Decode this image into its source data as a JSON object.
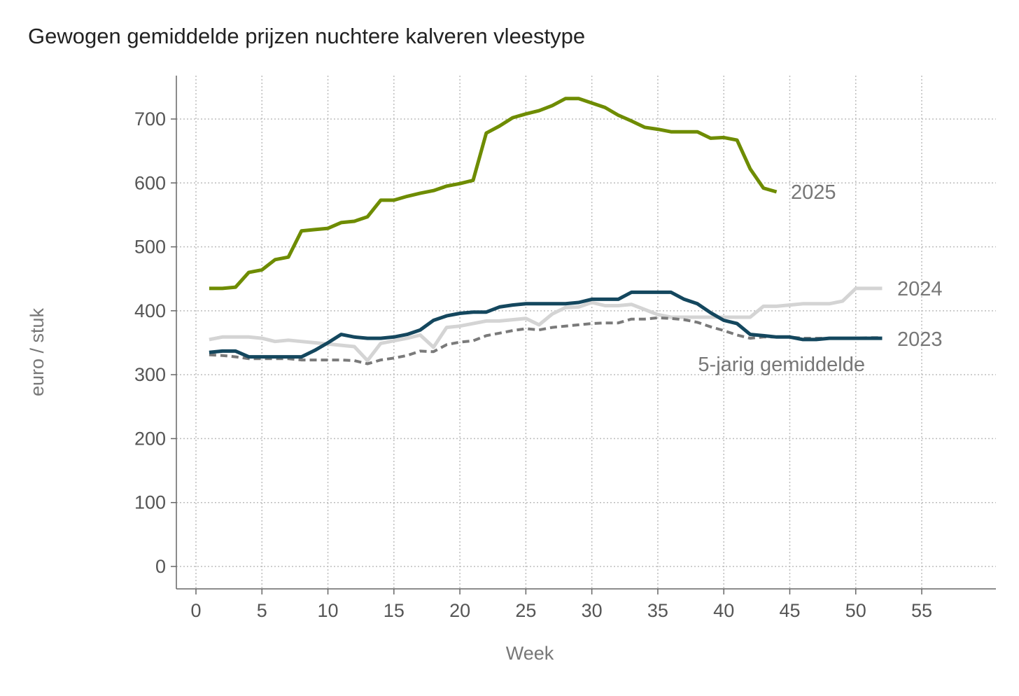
{
  "chart_data": {
    "type": "line",
    "title": "Gewogen gemiddelde prijzen nuchtere kalveren vleestype",
    "xlabel": "Week",
    "ylabel": "euro / stuk",
    "xlim": [
      0,
      59
    ],
    "ylim": [
      -35,
      770
    ],
    "xticks": [
      0,
      5,
      10,
      15,
      20,
      25,
      30,
      35,
      40,
      45,
      50,
      55
    ],
    "yticks": [
      0,
      100,
      200,
      300,
      400,
      500,
      600,
      700
    ],
    "grid": true,
    "legend": "inline labels at line ends",
    "series": [
      {
        "name": "2025",
        "color": "#6e8c00",
        "dashed": false,
        "x_start": 1,
        "values": [
          435,
          435,
          437,
          460,
          464,
          480,
          484,
          525,
          527,
          529,
          538,
          540,
          547,
          573,
          573,
          579,
          584,
          588,
          595,
          599,
          604,
          678,
          689,
          702,
          708,
          713,
          721,
          732,
          732,
          725,
          718,
          706,
          697,
          687,
          684,
          680,
          680,
          680,
          670,
          671,
          667,
          622,
          592,
          586
        ]
      },
      {
        "name": "2024",
        "color": "#d4d4d4",
        "dashed": false,
        "x_start": 1,
        "values": [
          355,
          359,
          359,
          359,
          357,
          352,
          354,
          352,
          350,
          348,
          346,
          344,
          322,
          349,
          353,
          357,
          362,
          343,
          374,
          376,
          380,
          384,
          384,
          386,
          388,
          378,
          395,
          405,
          406,
          413,
          408,
          408,
          410,
          402,
          394,
          390,
          390,
          390,
          390,
          390,
          390,
          390,
          407,
          407,
          409,
          411,
          411,
          411,
          415,
          435,
          435,
          435
        ]
      },
      {
        "name": "2023",
        "color": "#14475e",
        "dashed": false,
        "x_start": 1,
        "values": [
          335,
          337,
          337,
          328,
          328,
          328,
          328,
          328,
          338,
          350,
          363,
          359,
          357,
          357,
          359,
          363,
          370,
          385,
          392,
          396,
          398,
          398,
          406,
          409,
          411,
          411,
          411,
          411,
          413,
          418,
          418,
          418,
          429,
          429,
          429,
          429,
          418,
          411,
          397,
          385,
          380,
          363,
          361,
          359,
          359,
          355,
          355,
          357,
          357,
          357,
          357,
          357
        ]
      },
      {
        "name": "5-jarig gemiddelde",
        "color": "#7a7a7a",
        "dashed": true,
        "x_start": 1,
        "values": [
          331,
          330,
          328,
          325,
          325,
          325,
          325,
          323,
          323,
          323,
          323,
          322,
          317,
          323,
          326,
          330,
          337,
          336,
          347,
          351,
          353,
          361,
          365,
          369,
          372,
          370,
          374,
          376,
          378,
          380,
          381,
          381,
          387,
          387,
          389,
          388,
          386,
          382,
          375,
          369,
          362,
          357,
          359,
          359,
          359,
          357,
          357,
          357,
          357,
          357,
          358,
          358
        ]
      }
    ]
  }
}
